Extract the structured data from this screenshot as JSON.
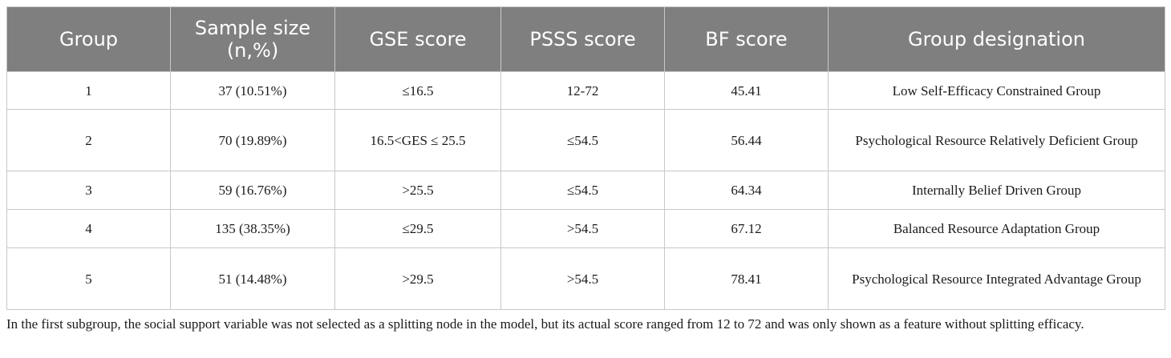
{
  "table": {
    "headers": [
      "Group",
      "Sample size (n,%)",
      "GSE score",
      "PSSS score",
      "BF score",
      "Group designation"
    ],
    "rows": [
      [
        "1",
        "37 (10.51%)",
        "≤16.5",
        "12-72",
        "45.41",
        "Low Self-Efficacy Constrained Group"
      ],
      [
        "2",
        "70 (19.89%)",
        "16.5<GES ≤ 25.5",
        "≤54.5",
        "56.44",
        "Psychological Resource Relatively Deficient Group"
      ],
      [
        "3",
        "59 (16.76%)",
        ">25.5",
        "≤54.5",
        "64.34",
        "Internally Belief Driven Group"
      ],
      [
        "4",
        "135 (38.35%)",
        "≤29.5",
        ">54.5",
        "67.12",
        "Balanced Resource Adaptation Group"
      ],
      [
        "5",
        "51 (14.48%)",
        ">29.5",
        ">54.5",
        "78.41",
        "Psychological Resource Integrated Advantage Group"
      ]
    ]
  },
  "footnote": "In the first subgroup, the social support variable was not selected as a splitting node in the model, but its actual score ranged from 12 to 72 and was only shown as a feature without splitting efficacy.",
  "colors": {
    "header_bg": "#7f7f7f",
    "header_text": "#ffffff",
    "border": "#c8c8c8"
  }
}
